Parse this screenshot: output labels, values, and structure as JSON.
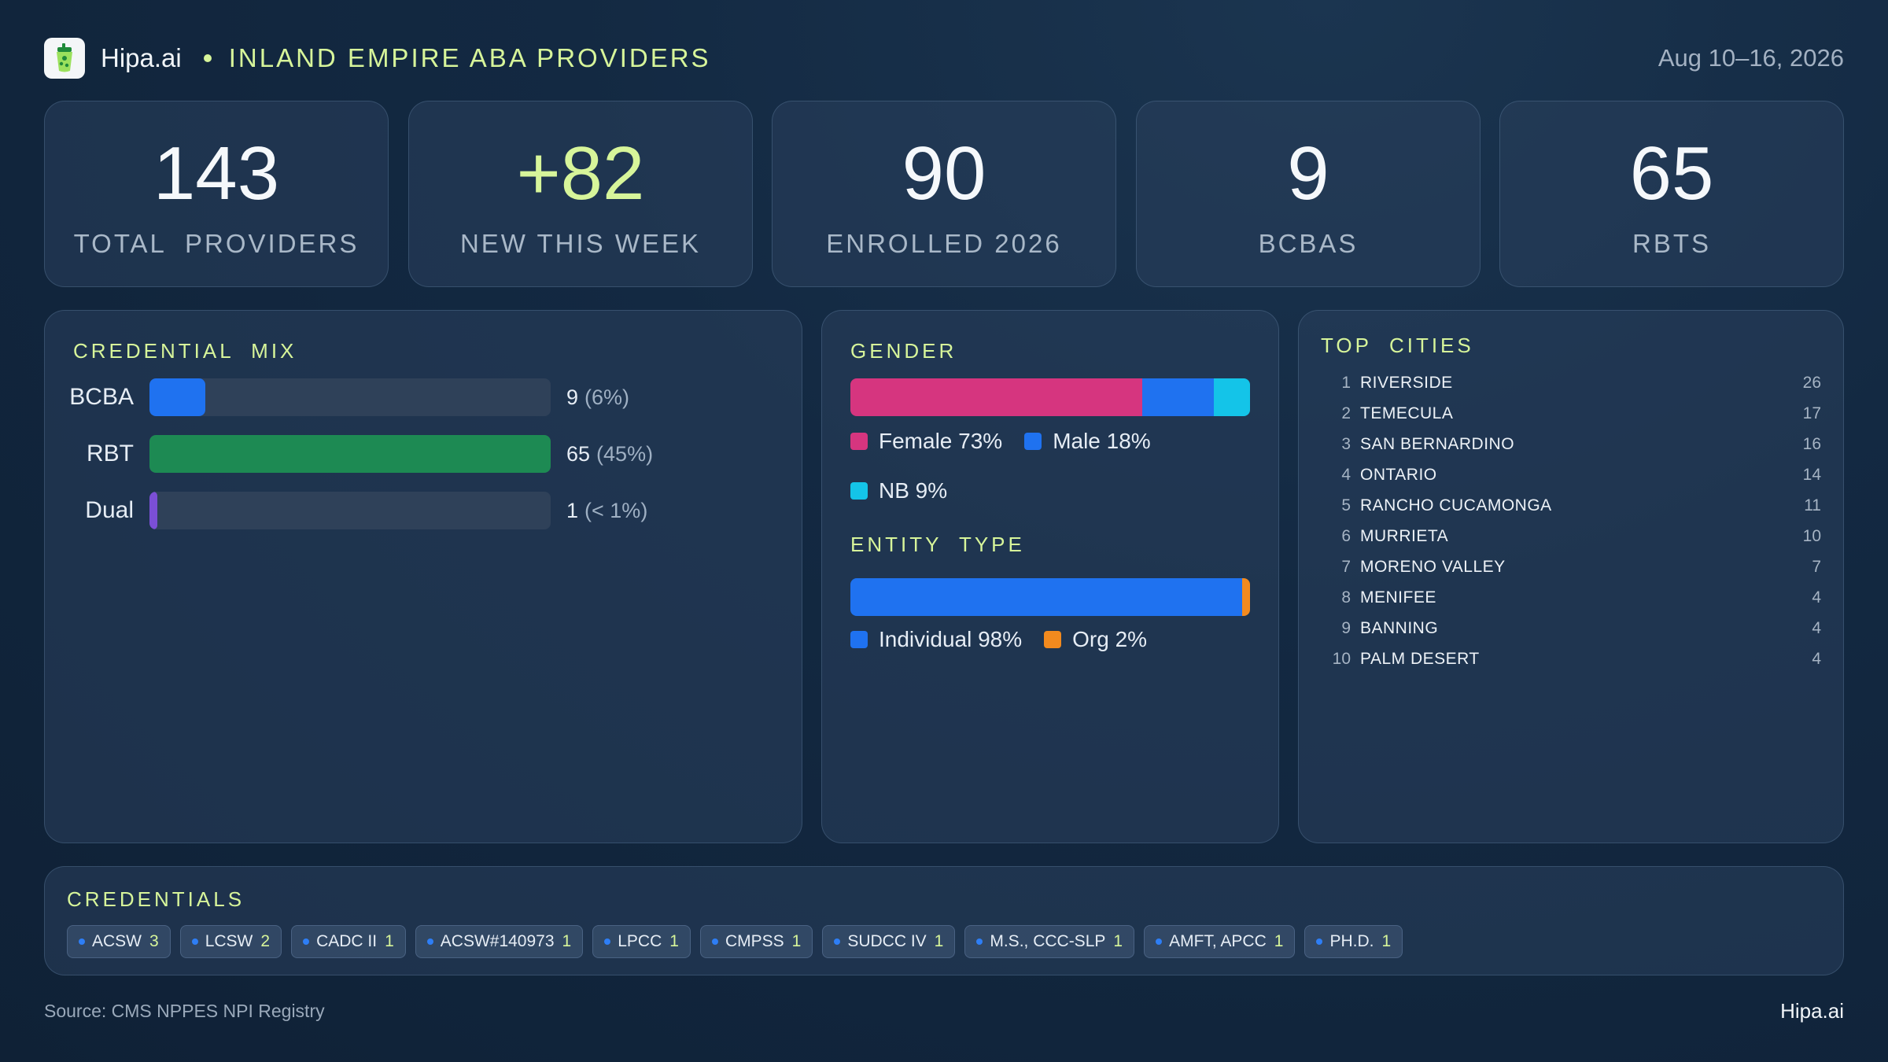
{
  "header": {
    "brand": "Hipa.ai",
    "title": "INLAND EMPIRE ABA PROVIDERS",
    "date_range": "Aug 10–16, 2026",
    "logo_icon": "cup-icon"
  },
  "kpis": [
    {
      "value": "143",
      "label": "TOTAL  PROVIDERS"
    },
    {
      "value": "+82",
      "label": "NEW THIS WEEK"
    },
    {
      "value": "90",
      "label": "ENROLLED 2026"
    },
    {
      "value": "9",
      "label": "BCBAS"
    },
    {
      "value": "65",
      "label": "RBTS"
    }
  ],
  "credential_mix": {
    "title": "CREDENTIAL  MIX",
    "rows": [
      {
        "name": "BCBA",
        "value": "9",
        "pct": "(6%)",
        "fraction": 0.14,
        "color": "#1f72f0"
      },
      {
        "name": "RBT",
        "value": "65",
        "pct": "(45%)",
        "fraction": 1.0,
        "color": "#1d8a53"
      },
      {
        "name": "Dual",
        "value": "1",
        "pct": "(< 1%)",
        "fraction": 0.02,
        "color": "#7b4fd6"
      }
    ]
  },
  "gender": {
    "title": "GENDER",
    "segments": [
      {
        "label": "Female 73%",
        "fraction": 0.73,
        "color": "#d6357f"
      },
      {
        "label": "Male 18%",
        "fraction": 0.18,
        "color": "#1f72f0"
      },
      {
        "label": "NB 9%",
        "fraction": 0.09,
        "color": "#14c4e8"
      }
    ]
  },
  "entity_type": {
    "title": "ENTITY  TYPE",
    "segments": [
      {
        "label": "Individual 98%",
        "fraction": 0.98,
        "color": "#1f72f0"
      },
      {
        "label": "Org 2%",
        "fraction": 0.02,
        "color": "#f28a1e"
      }
    ]
  },
  "top_cities": {
    "title": "TOP  CITIES",
    "rows": [
      {
        "rank": "1",
        "city": "RIVERSIDE",
        "count": "26"
      },
      {
        "rank": "2",
        "city": "TEMECULA",
        "count": "17"
      },
      {
        "rank": "3",
        "city": "SAN BERNARDINO",
        "count": "16"
      },
      {
        "rank": "4",
        "city": "ONTARIO",
        "count": "14"
      },
      {
        "rank": "5",
        "city": "RANCHO CUCAMONGA",
        "count": "11"
      },
      {
        "rank": "6",
        "city": "MURRIETA",
        "count": "10"
      },
      {
        "rank": "7",
        "city": "MORENO VALLEY",
        "count": "7"
      },
      {
        "rank": "8",
        "city": "MENIFEE",
        "count": "4"
      },
      {
        "rank": "9",
        "city": "BANNING",
        "count": "4"
      },
      {
        "rank": "10",
        "city": "PALM DESERT",
        "count": "4"
      }
    ]
  },
  "credentials": {
    "title": "CREDENTIALS",
    "chips": [
      {
        "label": "ACSW",
        "count": "3"
      },
      {
        "label": "LCSW",
        "count": "2"
      },
      {
        "label": "CADC II",
        "count": "1"
      },
      {
        "label": "ACSW#140973",
        "count": "1"
      },
      {
        "label": "LPCC",
        "count": "1"
      },
      {
        "label": "CMPSS",
        "count": "1"
      },
      {
        "label": "SUDCC IV",
        "count": "1"
      },
      {
        "label": "M.S., CCC-SLP",
        "count": "1"
      },
      {
        "label": "AMFT, APCC",
        "count": "1"
      },
      {
        "label": "PH.D.",
        "count": "1"
      }
    ]
  },
  "footer": {
    "source": "Source: CMS NPPES NPI Registry",
    "brand": "Hipa.ai"
  }
}
